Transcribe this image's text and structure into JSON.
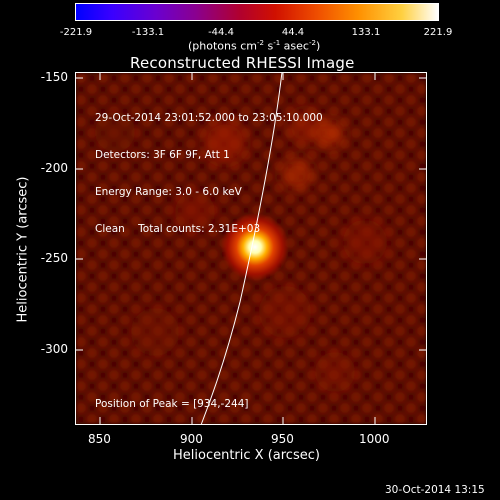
{
  "colorbar": {
    "ticks": [
      "-221.9",
      "-133.1",
      "-44.4",
      "44.4",
      "133.1",
      "221.9"
    ],
    "units_prefix": "(photons cm",
    "units_sup1": "-2",
    "units_mid": " s",
    "units_sup2": "-1",
    "units_mid2": " asec",
    "units_sup3": "-2",
    "units_suffix": ")",
    "colors": [
      "#0000ff",
      "#4400ff",
      "#7a00c8",
      "#a00080",
      "#c01010",
      "#e04000",
      "#ff8000",
      "#ffc000",
      "#ffffff"
    ]
  },
  "plot": {
    "title": "Reconstructed RHESSI Image",
    "x_axis_label": "Heliocentric X (arcsec)",
    "y_axis_label": "Heliocentric Y (arcsec)",
    "x_ticks": [
      "850",
      "900",
      "950",
      "1000"
    ],
    "y_ticks": [
      "-150",
      "-200",
      "-250",
      "-300"
    ],
    "x_range": [
      835,
      1027
    ],
    "y_range": [
      -340,
      -147
    ],
    "peak_position": [
      934,
      -244
    ]
  },
  "info": {
    "line1": "29-Oct-2014 23:01:52.000 to 23:05:10.000",
    "line2": "Detectors: 3F 6F 9F, Att 1",
    "line3": "Energy Range: 3.0 - 6.0 keV",
    "line4": "Clean    Total counts: 2.31E+03",
    "peak_label": "Position of Peak = [934,-244]"
  },
  "footer": {
    "date": "30-Oct-2014 13:15"
  }
}
